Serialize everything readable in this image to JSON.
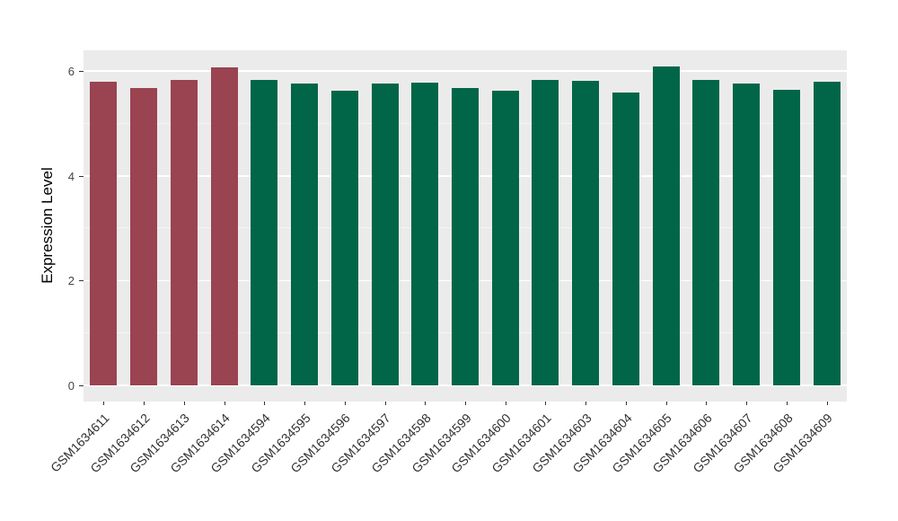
{
  "chart_data": {
    "type": "bar",
    "title": "",
    "xlabel": "",
    "ylabel": "Expression Level",
    "ylim": [
      0,
      6.4
    ],
    "yticks_major": [
      0,
      2,
      4,
      6
    ],
    "yticks_minor": [
      1,
      3,
      5
    ],
    "grid": "on",
    "legend": "none",
    "panel_bg": "#EBEBEB",
    "grid_color": "#FFFFFF",
    "palette": {
      "maroon": "#9A4351",
      "green": "#006647"
    },
    "bars": [
      {
        "label": "GSM1634611",
        "value": 5.79,
        "color": "maroon"
      },
      {
        "label": "GSM1634612",
        "value": 5.68,
        "color": "maroon"
      },
      {
        "label": "GSM1634613",
        "value": 5.84,
        "color": "maroon"
      },
      {
        "label": "GSM1634614",
        "value": 6.07,
        "color": "maroon"
      },
      {
        "label": "GSM1634594",
        "value": 5.84,
        "color": "green"
      },
      {
        "label": "GSM1634595",
        "value": 5.77,
        "color": "green"
      },
      {
        "label": "GSM1634596",
        "value": 5.62,
        "color": "green"
      },
      {
        "label": "GSM1634597",
        "value": 5.76,
        "color": "green"
      },
      {
        "label": "GSM1634598",
        "value": 5.78,
        "color": "green"
      },
      {
        "label": "GSM1634599",
        "value": 5.67,
        "color": "green"
      },
      {
        "label": "GSM1634600",
        "value": 5.63,
        "color": "green"
      },
      {
        "label": "GSM1634601",
        "value": 5.83,
        "color": "green"
      },
      {
        "label": "GSM1634603",
        "value": 5.81,
        "color": "green"
      },
      {
        "label": "GSM1634604",
        "value": 5.59,
        "color": "green"
      },
      {
        "label": "GSM1634605",
        "value": 6.09,
        "color": "green"
      },
      {
        "label": "GSM1634606",
        "value": 5.84,
        "color": "green"
      },
      {
        "label": "GSM1634607",
        "value": 5.76,
        "color": "green"
      },
      {
        "label": "GSM1634608",
        "value": 5.64,
        "color": "green"
      },
      {
        "label": "GSM1634609",
        "value": 5.8,
        "color": "green"
      }
    ]
  }
}
